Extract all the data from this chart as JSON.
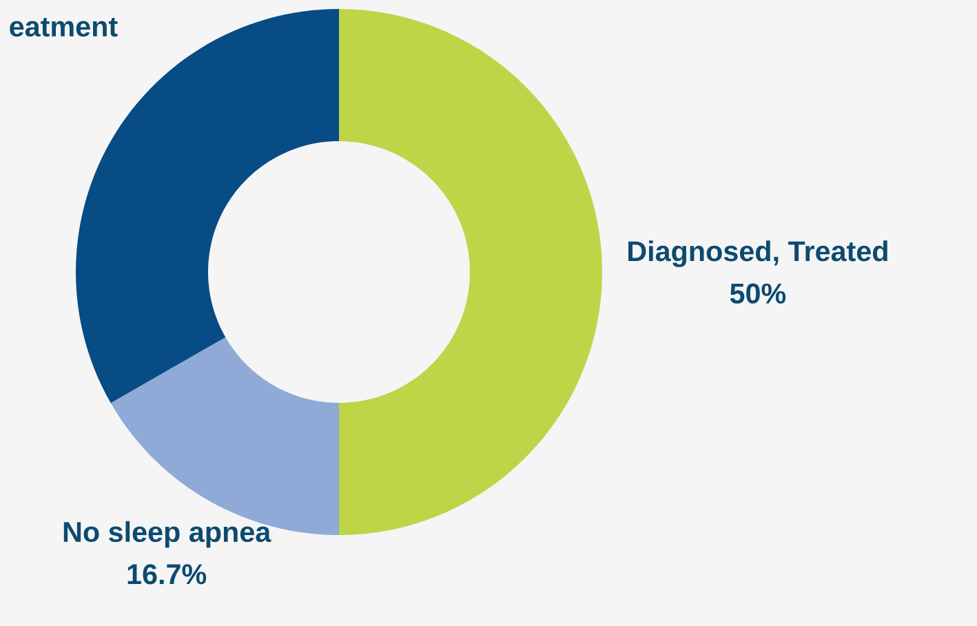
{
  "chart_data": {
    "type": "donut",
    "categories": [
      "Diagnosed, Treated",
      "No sleep apnea",
      "eatment"
    ],
    "values": [
      50,
      16.7,
      33.3
    ],
    "colors": [
      "#bdd547",
      "#8faad6",
      "#084c86"
    ],
    "value_labels": [
      "50%",
      "16.7%",
      null
    ]
  }
}
